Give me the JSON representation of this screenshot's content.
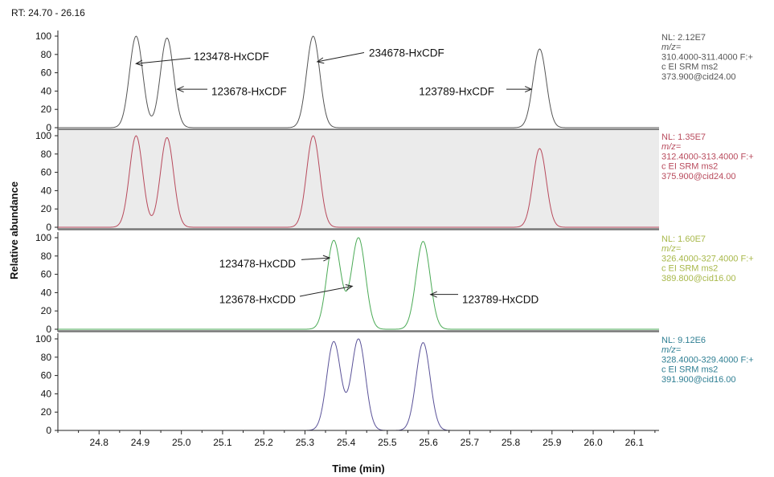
{
  "header": {
    "rt_range": "RT: 24.70 - 26.16"
  },
  "chart_data": {
    "type": "line",
    "xlabel": "Time (min)",
    "ylabel": "Relative abundance",
    "xlim": [
      24.7,
      26.16
    ],
    "xticks": [
      "24.8",
      "24.9",
      "25.0",
      "25.1",
      "25.2",
      "25.3",
      "25.4",
      "25.5",
      "25.6",
      "25.7",
      "25.8",
      "25.9",
      "26.0",
      "26.1"
    ],
    "yticks": [
      "0",
      "20",
      "40",
      "60",
      "80",
      "100"
    ],
    "ylim": [
      0,
      100
    ],
    "panels": [
      {
        "color": "#555555",
        "bg": "#ffffff",
        "info": [
          "NL: 2.12E7",
          "m/z=",
          "310.4000-311.4000 F:+",
          "c EI SRM ms2",
          "373.900@cid24.00"
        ],
        "peaks": [
          {
            "rt": 24.89,
            "height": 100,
            "width": 0.016
          },
          {
            "rt": 24.965,
            "height": 98,
            "width": 0.016
          },
          {
            "rt": 25.32,
            "height": 100,
            "width": 0.016
          },
          {
            "rt": 25.87,
            "height": 86,
            "width": 0.016
          }
        ],
        "annotations": [
          {
            "text": "123478-HxCDF",
            "peak_rt": 24.89,
            "peak_y": 70
          },
          {
            "text": "123678-HxCDF",
            "peak_rt": 24.99,
            "peak_y": 42
          },
          {
            "text": "234678-HxCDF",
            "peak_rt": 25.33,
            "peak_y": 72
          },
          {
            "text": "123789-HxCDF",
            "peak_rt": 25.85,
            "peak_y": 42
          }
        ]
      },
      {
        "color": "#b84a5c",
        "bg": "#ebebeb",
        "info": [
          "NL: 1.35E7",
          "m/z=",
          "312.4000-313.4000 F:+",
          "c EI SRM ms2",
          "375.900@cid24.00"
        ],
        "peaks": [
          {
            "rt": 24.89,
            "height": 100,
            "width": 0.016
          },
          {
            "rt": 24.965,
            "height": 98,
            "width": 0.016
          },
          {
            "rt": 25.32,
            "height": 100,
            "width": 0.016
          },
          {
            "rt": 25.87,
            "height": 86,
            "width": 0.016
          }
        ],
        "annotations": []
      },
      {
        "color": "#4aaa55",
        "bg": "#ffffff",
        "info": [
          "NL: 1.60E7",
          "m/z=",
          "326.4000-327.4000 F:+",
          "c EI SRM ms2",
          "389.800@cid16.00"
        ],
        "peaks": [
          {
            "rt": 25.37,
            "height": 97,
            "width": 0.017
          },
          {
            "rt": 25.43,
            "height": 100,
            "width": 0.017
          },
          {
            "rt": 25.587,
            "height": 96,
            "width": 0.017
          }
        ],
        "annotations": [
          {
            "text": "123478-HxCDD",
            "peak_rt": 25.36,
            "peak_y": 78
          },
          {
            "text": "123678-HxCDD",
            "peak_rt": 25.415,
            "peak_y": 47
          },
          {
            "text": "123789-HxCDD",
            "peak_rt": 25.605,
            "peak_y": 38
          }
        ]
      },
      {
        "color": "#5a5298",
        "bg": "#ffffff",
        "info": [
          "NL: 9.12E6",
          "m/z=",
          "328.4000-329.4000 F:+",
          "c EI SRM ms2",
          "391.900@cid16.00"
        ],
        "peaks": [
          {
            "rt": 25.37,
            "height": 97,
            "width": 0.017
          },
          {
            "rt": 25.43,
            "height": 100,
            "width": 0.017
          },
          {
            "rt": 25.587,
            "height": 96,
            "width": 0.017
          }
        ],
        "annotations": []
      }
    ]
  },
  "colors": {
    "panel1_info": "#555555",
    "panel2_info": "#b84a5c",
    "panel3_info": "#a8b84a",
    "panel4_info": "#2f7f93"
  }
}
